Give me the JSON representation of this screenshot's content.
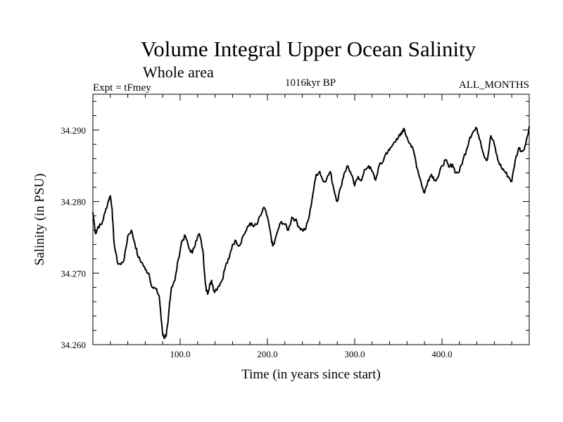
{
  "chart_data": {
    "type": "line",
    "title": "Volume Integral Upper Ocean Salinity",
    "subtitle": "Whole area",
    "left_label": "Expt = tFmey",
    "center_label": "1016kyr BP",
    "right_label": "ALL_MONTHS",
    "xlabel": "Time (in years since start)",
    "ylabel": "Salinity (in PSU)",
    "xlim": [
      0,
      500
    ],
    "ylim": [
      34.26,
      34.295
    ],
    "x_ticks": [
      100,
      200,
      300,
      400
    ],
    "x_tick_labels": [
      "100.0",
      "200.0",
      "300.0",
      "400.0"
    ],
    "y_ticks": [
      34.26,
      34.27,
      34.28,
      34.29
    ],
    "y_tick_labels": [
      "34.260",
      "34.270",
      "34.280",
      "34.290"
    ],
    "series": [
      {
        "name": "salinity",
        "x": [
          0,
          3,
          6,
          10,
          14,
          18,
          20,
          22,
          24,
          28,
          32,
          36,
          40,
          44,
          48,
          52,
          56,
          60,
          64,
          68,
          72,
          76,
          78,
          80,
          82,
          84,
          86,
          88,
          90,
          94,
          98,
          102,
          106,
          110,
          114,
          118,
          122,
          126,
          128,
          130,
          132,
          134,
          136,
          138,
          140,
          144,
          148,
          152,
          156,
          160,
          164,
          168,
          172,
          176,
          180,
          184,
          188,
          192,
          196,
          200,
          204,
          206,
          208,
          212,
          216,
          220,
          224,
          228,
          232,
          236,
          240,
          244,
          248,
          252,
          256,
          260,
          264,
          268,
          272,
          276,
          280,
          284,
          288,
          292,
          296,
          300,
          304,
          308,
          312,
          316,
          320,
          324,
          328,
          332,
          336,
          340,
          344,
          348,
          352,
          354,
          356,
          360,
          364,
          368,
          372,
          376,
          378,
          380,
          384,
          388,
          392,
          396,
          400,
          404,
          408,
          412,
          416,
          420,
          424,
          428,
          432,
          436,
          440,
          444,
          448,
          452,
          456,
          460,
          464,
          468,
          472,
          476,
          480,
          484,
          488,
          492,
          496,
          500
        ],
        "values": [
          34.2785,
          34.2755,
          34.2765,
          34.2768,
          34.2785,
          34.2802,
          34.2808,
          34.279,
          34.2745,
          34.2715,
          34.2712,
          34.272,
          34.2752,
          34.276,
          34.2742,
          34.2722,
          34.2715,
          34.2705,
          34.27,
          34.268,
          34.2678,
          34.2668,
          34.264,
          34.2615,
          34.261,
          34.2612,
          34.263,
          34.266,
          34.268,
          34.269,
          34.272,
          34.2745,
          34.2752,
          34.2735,
          34.2728,
          34.2745,
          34.2755,
          34.2732,
          34.27,
          34.2675,
          34.2672,
          34.2685,
          34.269,
          34.2678,
          34.2675,
          34.2682,
          34.269,
          34.271,
          34.272,
          34.274,
          34.2745,
          34.2738,
          34.2752,
          34.276,
          34.277,
          34.2765,
          34.2768,
          34.278,
          34.2792,
          34.2778,
          34.2752,
          34.2738,
          34.2742,
          34.276,
          34.2772,
          34.2768,
          34.276,
          34.2778,
          34.2775,
          34.2765,
          34.276,
          34.2762,
          34.278,
          34.281,
          34.2838,
          34.2842,
          34.2828,
          34.2832,
          34.2842,
          34.2818,
          34.28,
          34.282,
          34.284,
          34.285,
          34.2838,
          34.2822,
          34.2835,
          34.283,
          34.2845,
          34.285,
          34.2842,
          34.283,
          34.285,
          34.2855,
          34.2868,
          34.2872,
          34.288,
          34.2888,
          34.2892,
          34.2895,
          34.2902,
          34.289,
          34.288,
          34.2868,
          34.2845,
          34.2828,
          34.2818,
          34.2812,
          34.283,
          34.2838,
          34.283,
          34.2835,
          34.285,
          34.2858,
          34.2848,
          34.2852,
          34.284,
          34.2842,
          34.2858,
          34.2872,
          34.289,
          34.2898,
          34.2902,
          34.2885,
          34.2865,
          34.2858,
          34.2892,
          34.288,
          34.2858,
          34.2848,
          34.2842,
          34.2835,
          34.2828,
          34.2858,
          34.2875,
          34.287,
          34.288,
          34.2905
        ]
      }
    ]
  }
}
